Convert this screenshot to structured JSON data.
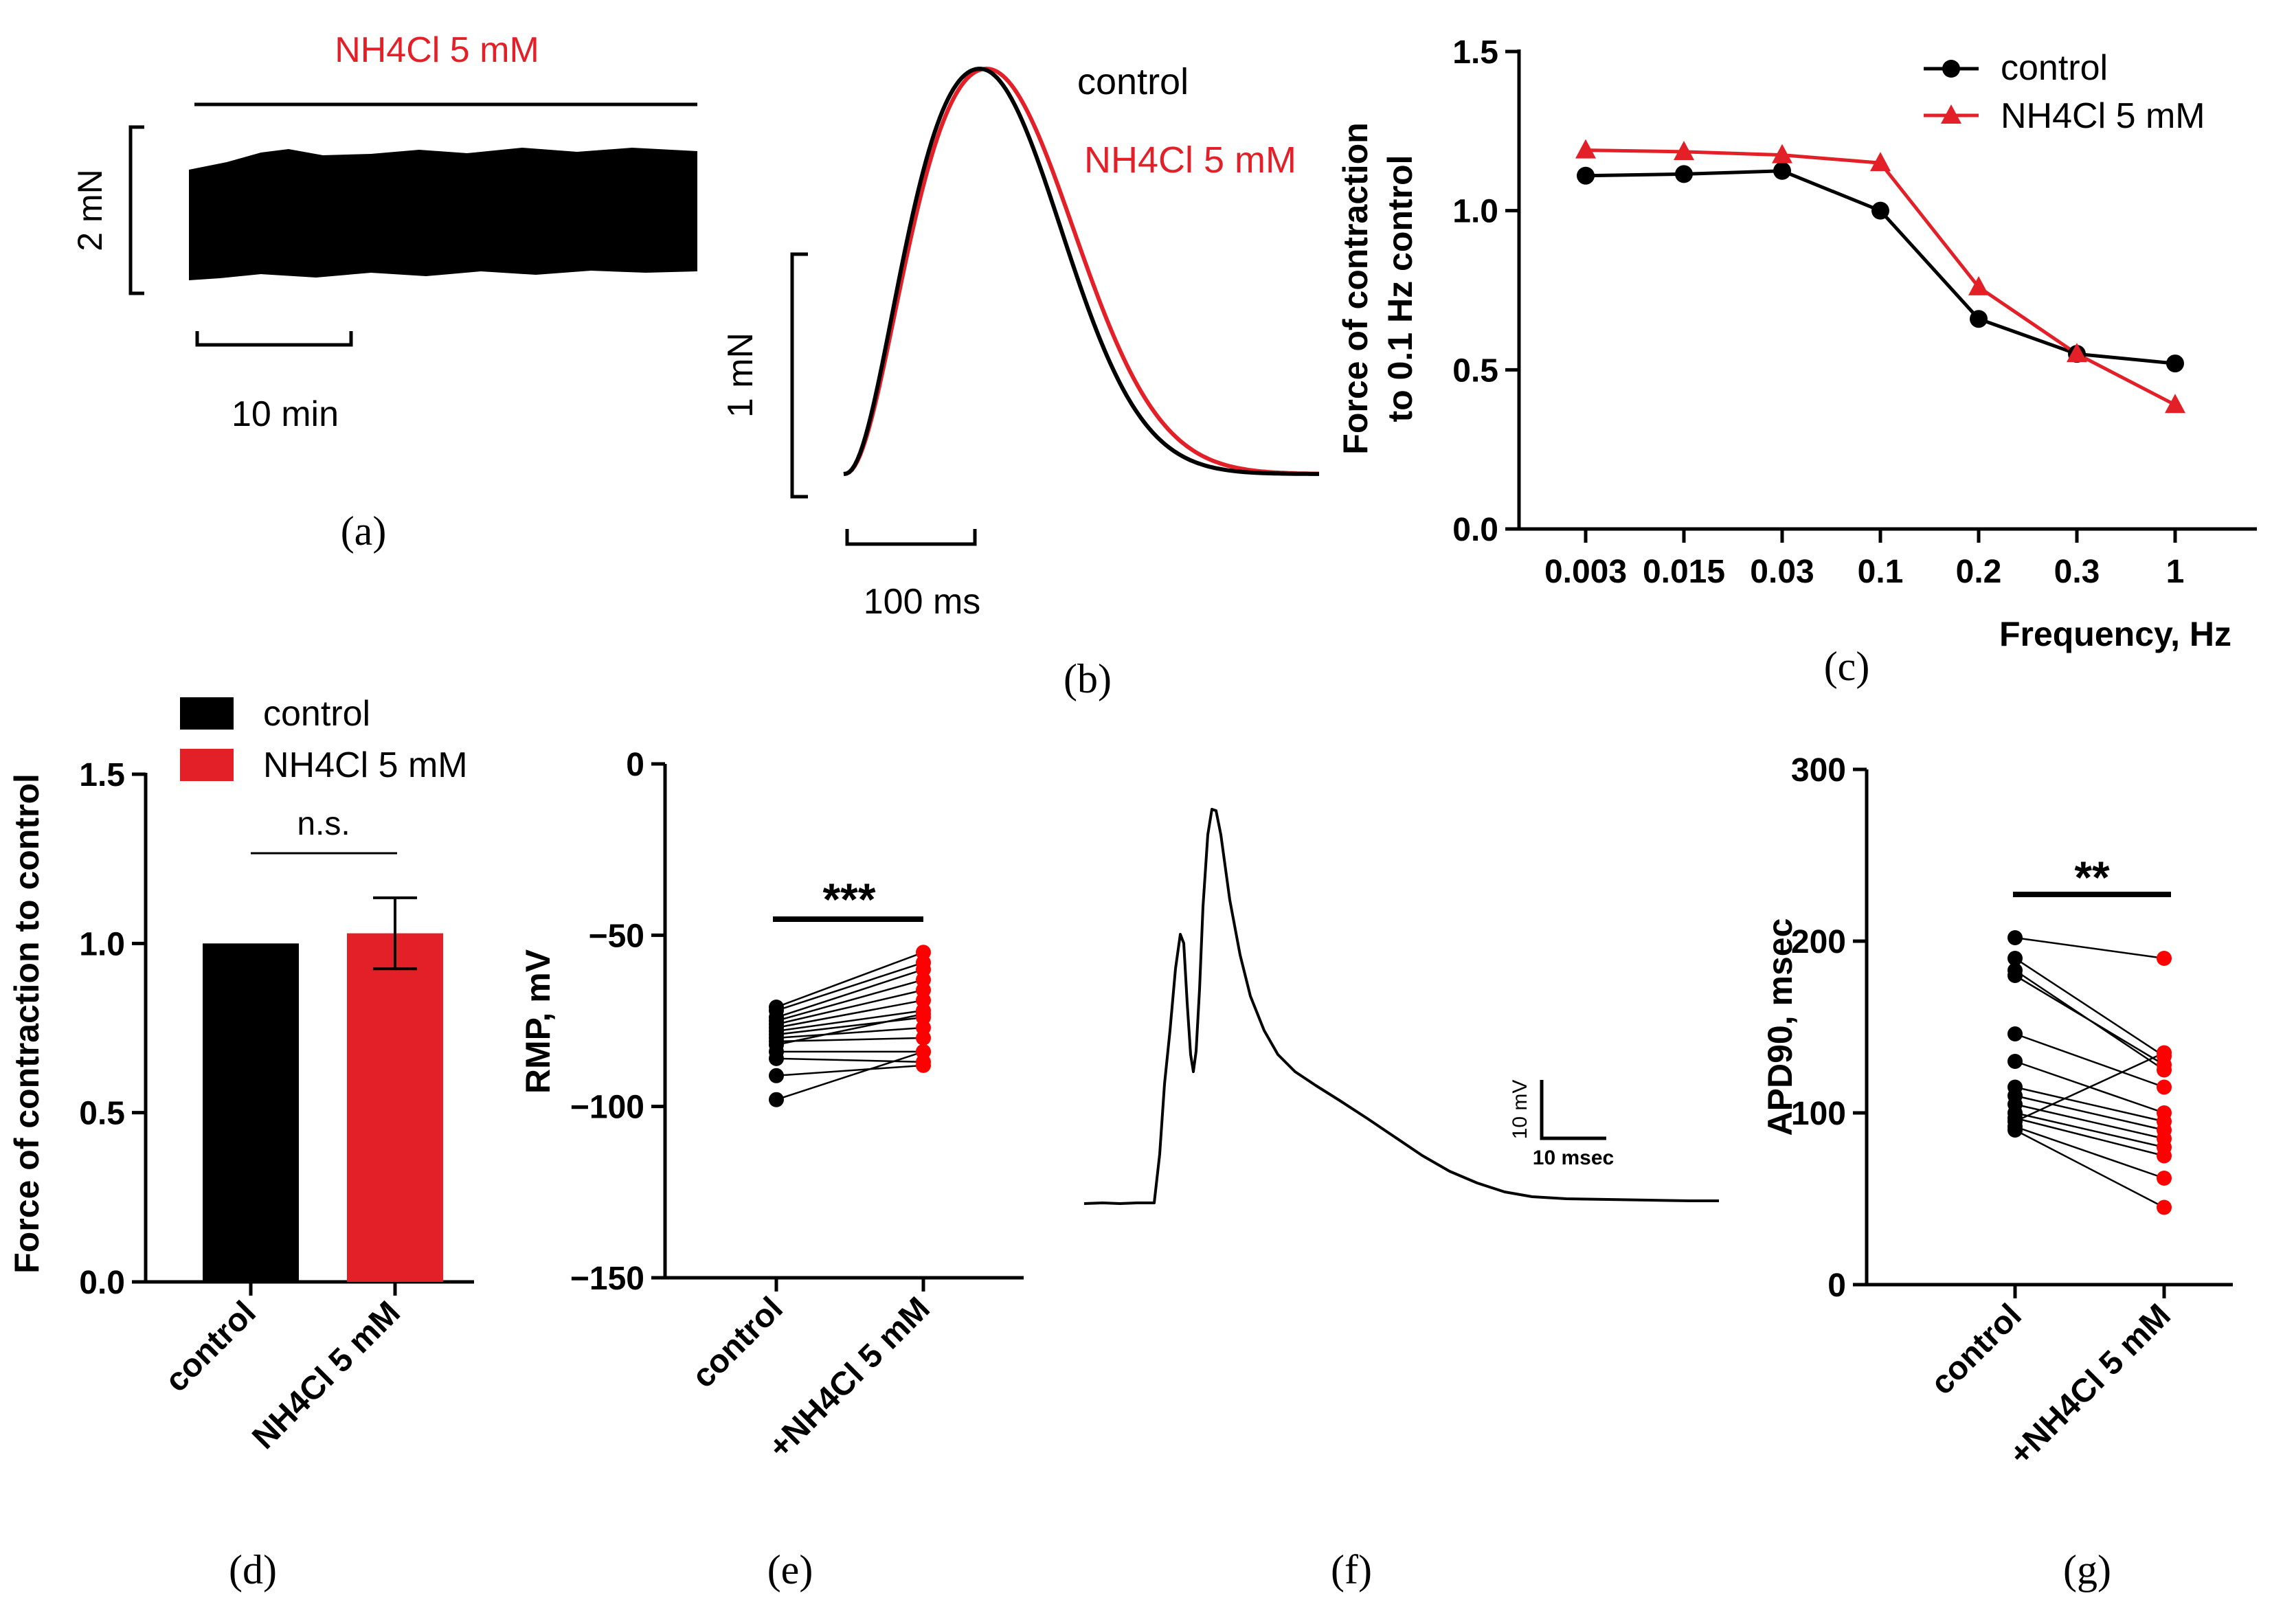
{
  "colors": {
    "control": "#000000",
    "nh4cl": "#e32028",
    "nh4cl_dots": "#ff0000"
  },
  "panels": {
    "a": {
      "label": "(a)",
      "bar_label": "NH4Cl 5 mM",
      "scale_y_label": "2 mN",
      "scale_x_label": "10 min"
    },
    "b": {
      "label": "(b)",
      "legend_control": "control",
      "legend_nh4cl": "NH4Cl 5 mM",
      "scale_y_label": "1 mN",
      "scale_x_label": "100 ms"
    },
    "c": {
      "label": "(c)"
    },
    "d": {
      "label": "(d)"
    },
    "e": {
      "label": "(e)"
    },
    "f": {
      "label": "(f)",
      "scale_y_label": "10 mV",
      "scale_x_label": "10 msec"
    },
    "g": {
      "label": "(g)"
    }
  },
  "chart_data": [
    {
      "id": "c",
      "type": "line",
      "xlabel": "Frequency, Hz",
      "ylabel": [
        "Force of contraction",
        "to 0.1 Hz control"
      ],
      "categories": [
        "0.003",
        "0.015",
        "0.03",
        "0.1",
        "0.2",
        "0.3",
        "1"
      ],
      "ylim": [
        0,
        1.5
      ],
      "yticks": [
        0.0,
        0.5,
        1.0,
        1.5
      ],
      "ytick_labels": [
        "0.0",
        "0.5",
        "1.0",
        "1.5"
      ],
      "series": [
        {
          "name": "control",
          "marker": "circle",
          "values": [
            1.11,
            1.115,
            1.125,
            1.0,
            0.66,
            0.55,
            0.52
          ]
        },
        {
          "name": "NH4Cl 5 mM",
          "marker": "triangle",
          "values": [
            1.19,
            1.185,
            1.175,
            1.15,
            0.76,
            0.55,
            0.39
          ]
        }
      ]
    },
    {
      "id": "d",
      "type": "bar",
      "ylabel": "Force of contraction to control",
      "categories": [
        "control",
        "NH4Cl 5 mM"
      ],
      "values": [
        1.0,
        1.03
      ],
      "errors": [
        0,
        0.105
      ],
      "ylim": [
        0,
        1.5
      ],
      "yticks": [
        0.0,
        0.5,
        1.0,
        1.5
      ],
      "ytick_labels": [
        "0.0",
        "0.5",
        "1.0",
        "1.5"
      ],
      "legend": [
        "control",
        "NH4Cl 5 mM"
      ],
      "annotation": "n.s."
    },
    {
      "id": "e",
      "type": "scatter",
      "ylabel": "RMP, mV",
      "categories": [
        "control",
        "+NH4Cl 5 mM"
      ],
      "ylim": [
        -150,
        0
      ],
      "yticks": [
        0,
        -50,
        -100,
        -150
      ],
      "ytick_labels": [
        "0",
        "−50",
        "−100",
        "−150"
      ],
      "pairs": [
        [
          -71,
          -55
        ],
        [
          -72,
          -58
        ],
        [
          -74,
          -60
        ],
        [
          -75,
          -63
        ],
        [
          -76,
          -66
        ],
        [
          -77,
          -69
        ],
        [
          -78,
          -72
        ],
        [
          -79,
          -74
        ],
        [
          -80,
          -77
        ],
        [
          -81,
          -80
        ],
        [
          -82,
          -73
        ],
        [
          -84,
          -84
        ],
        [
          -86,
          -87
        ],
        [
          -91,
          -88
        ],
        [
          -98,
          -84
        ]
      ],
      "annotation": "***"
    },
    {
      "id": "g",
      "type": "scatter",
      "ylabel": "APD90, msec",
      "categories": [
        "control",
        "+NH4Cl 5 mM"
      ],
      "ylim": [
        0,
        300
      ],
      "yticks": [
        0,
        100,
        200,
        300
      ],
      "ytick_labels": [
        "0",
        "100",
        "200",
        "300"
      ],
      "pairs": [
        [
          202,
          190
        ],
        [
          190,
          133
        ],
        [
          183,
          125
        ],
        [
          180,
          128
        ],
        [
          146,
          115
        ],
        [
          130,
          100
        ],
        [
          115,
          95
        ],
        [
          110,
          90
        ],
        [
          105,
          85
        ],
        [
          100,
          80
        ],
        [
          97,
          75
        ],
        [
          95,
          135
        ],
        [
          92,
          62
        ],
        [
          90,
          45
        ]
      ],
      "annotation": "**"
    }
  ]
}
